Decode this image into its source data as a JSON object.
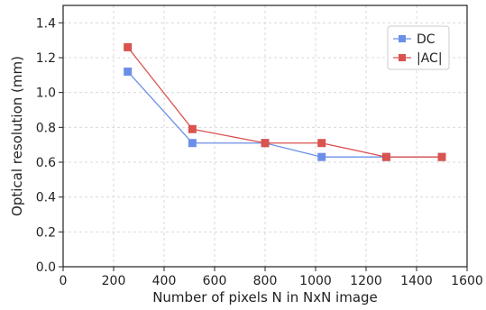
{
  "chart_data": {
    "type": "line",
    "xlabel": "Number of pixels N in NxN image",
    "ylabel": "Optical resolution (mm)",
    "xlim": [
      0,
      1600
    ],
    "ylim": [
      0.0,
      1.5
    ],
    "xticks": [
      0,
      200,
      400,
      600,
      800,
      1000,
      1200,
      1400,
      1600
    ],
    "yticks": [
      0.0,
      0.2,
      0.4,
      0.6,
      0.8,
      1.0,
      1.2,
      1.4
    ],
    "xtick_labels": [
      "0",
      "200",
      "400",
      "600",
      "800",
      "1000",
      "1200",
      "1400",
      "1600"
    ],
    "ytick_labels": [
      "0.0",
      "0.2",
      "0.4",
      "0.6",
      "0.8",
      "1.0",
      "1.2",
      "1.4"
    ],
    "grid": true,
    "legend_position": "top-right",
    "series": [
      {
        "name": "DC",
        "color": "#6b8fe8",
        "marker": "square",
        "x": [
          256,
          512,
          800,
          1024,
          1280,
          1500
        ],
        "y": [
          1.12,
          0.71,
          0.71,
          0.63,
          0.63,
          0.63
        ]
      },
      {
        "name": "|AC|",
        "color": "#d9534f",
        "marker": "square",
        "x": [
          256,
          512,
          800,
          1024,
          1280,
          1500
        ],
        "y": [
          1.26,
          0.79,
          0.71,
          0.71,
          0.63,
          0.63
        ]
      }
    ]
  }
}
